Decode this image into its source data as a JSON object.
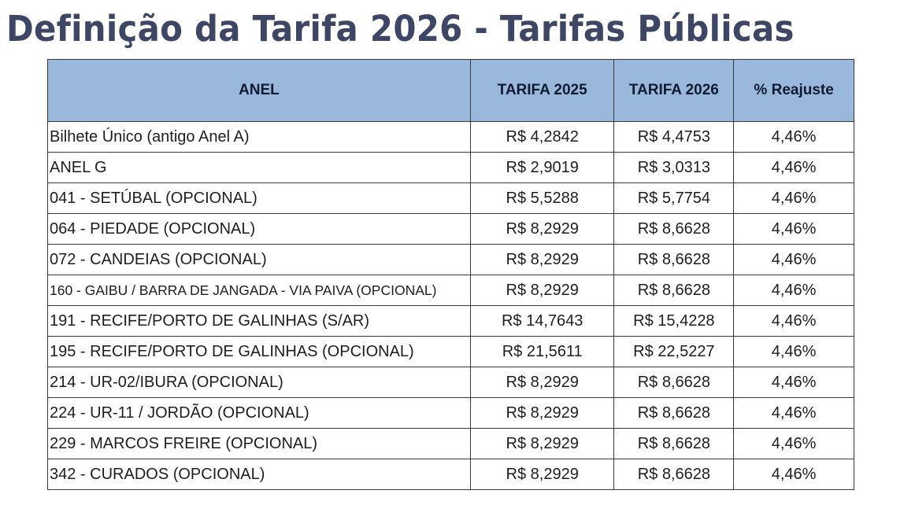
{
  "title": "Definição da Tarifa 2026 - Tarifas Públicas",
  "table": {
    "headers": [
      "ANEL",
      "TARIFA 2025",
      "TARIFA 2026",
      "% Reajuste"
    ],
    "rows": [
      {
        "anel": "Bilhete Único (antigo Anel A)",
        "tarifa_2025": "R$ 4,2842",
        "tarifa_2026": "R$ 4,4753",
        "reajuste": "4,46%"
      },
      {
        "anel": "ANEL G",
        "tarifa_2025": "R$ 2,9019",
        "tarifa_2026": "R$ 3,0313",
        "reajuste": "4,46%"
      },
      {
        "anel": "041 - SETÚBAL (OPCIONAL)",
        "tarifa_2025": "R$ 5,5288",
        "tarifa_2026": "R$ 5,7754",
        "reajuste": "4,46%"
      },
      {
        "anel": "064 - PIEDADE (OPCIONAL)",
        "tarifa_2025": "R$ 8,2929",
        "tarifa_2026": "R$ 8,6628",
        "reajuste": "4,46%"
      },
      {
        "anel": "072 - CANDEIAS (OPCIONAL)",
        "tarifa_2025": "R$ 8,2929",
        "tarifa_2026": "R$ 8,6628",
        "reajuste": "4,46%"
      },
      {
        "anel": "160 - GAIBU / BARRA DE JANGADA - VIA PAIVA (OPCIONAL)",
        "tarifa_2025": "R$ 8,2929",
        "tarifa_2026": "R$ 8,6628",
        "reajuste": "4,46%"
      },
      {
        "anel": "191 - RECIFE/PORTO DE GALINHAS (S/AR)",
        "tarifa_2025": "R$ 14,7643",
        "tarifa_2026": "R$ 15,4228",
        "reajuste": "4,46%"
      },
      {
        "anel": "195 - RECIFE/PORTO DE GALINHAS (OPCIONAL)",
        "tarifa_2025": "R$ 21,5611",
        "tarifa_2026": "R$ 22,5227",
        "reajuste": "4,46%"
      },
      {
        "anel": "214 - UR-02/IBURA (OPCIONAL)",
        "tarifa_2025": "R$ 8,2929",
        "tarifa_2026": "R$ 8,6628",
        "reajuste": "4,46%"
      },
      {
        "anel": "224 - UR-11 / JORDÃO (OPCIONAL)",
        "tarifa_2025": "R$ 8,2929",
        "tarifa_2026": "R$ 8,6628",
        "reajuste": "4,46%"
      },
      {
        "anel": "229 - MARCOS FREIRE (OPCIONAL)",
        "tarifa_2025": "R$ 8,2929",
        "tarifa_2026": "R$ 8,6628",
        "reajuste": "4,46%"
      },
      {
        "anel": "342 - CURADOS (OPCIONAL)",
        "tarifa_2025": "R$ 8,2929",
        "tarifa_2026": "R$ 8,6628",
        "reajuste": "4,46%"
      }
    ]
  },
  "colors": {
    "title": "#3d4664",
    "header_bg": "#9ab8dc",
    "border": "#3a3a3a"
  }
}
